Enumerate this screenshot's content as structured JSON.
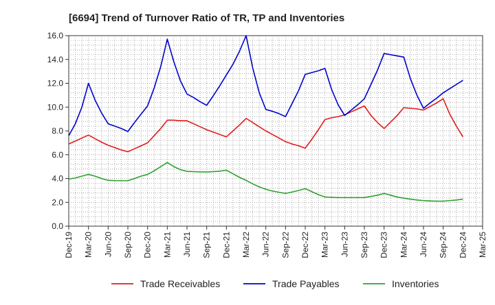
{
  "chart_data": {
    "type": "line",
    "title": "[6694]  Trend of Turnover Ratio of TR, TP and Inventories",
    "xlabel": "",
    "ylabel": "",
    "ylim": [
      0,
      16
    ],
    "yticks": [
      "0.0",
      "2.0",
      "4.0",
      "6.0",
      "8.0",
      "10.0",
      "12.0",
      "14.0",
      "16.0"
    ],
    "xtick_labels": [
      "Dec-19",
      "Mar-20",
      "Jun-20",
      "Sep-20",
      "Dec-20",
      "Mar-21",
      "Jun-21",
      "Sep-21",
      "Dec-21",
      "Mar-22",
      "Jun-22",
      "Sep-22",
      "Dec-22",
      "Mar-23",
      "Jun-23",
      "Sep-23",
      "Dec-23",
      "Mar-24",
      "Jun-24",
      "Sep-24",
      "Dec-24",
      "Mar-25"
    ],
    "grid": true,
    "legend_position": "bottom",
    "x": [
      "Dec-19",
      "Jan-20",
      "Feb-20",
      "Mar-20",
      "Apr-20",
      "May-20",
      "Jun-20",
      "Jul-20",
      "Aug-20",
      "Sep-20",
      "Oct-20",
      "Nov-20",
      "Dec-20",
      "Jan-21",
      "Feb-21",
      "Mar-21",
      "Apr-21",
      "May-21",
      "Jun-21",
      "Jul-21",
      "Aug-21",
      "Sep-21",
      "Oct-21",
      "Nov-21",
      "Dec-21",
      "Jan-22",
      "Feb-22",
      "Mar-22",
      "Apr-22",
      "May-22",
      "Jun-22",
      "Jul-22",
      "Aug-22",
      "Sep-22",
      "Oct-22",
      "Nov-22",
      "Dec-22",
      "Jan-23",
      "Feb-23",
      "Mar-23",
      "Apr-23",
      "May-23",
      "Jun-23",
      "Jul-23",
      "Aug-23",
      "Sep-23",
      "Oct-23",
      "Nov-23",
      "Dec-23",
      "Jan-24",
      "Feb-24",
      "Mar-24",
      "Apr-24",
      "May-24",
      "Jun-24",
      "Jul-24",
      "Aug-24",
      "Sep-24",
      "Oct-24",
      "Nov-24",
      "Dec-24"
    ],
    "series": [
      {
        "name": "Trade Receivables",
        "color": "#e31a1c",
        "values": [
          6.9,
          7.15,
          7.4,
          7.65,
          7.35,
          7.05,
          6.8,
          6.6,
          6.4,
          6.25,
          6.5,
          6.75,
          7.0,
          7.6,
          8.2,
          8.9,
          8.9,
          8.85,
          8.85,
          8.6,
          8.35,
          8.1,
          7.9,
          7.7,
          7.5,
          8.0,
          8.5,
          9.05,
          8.7,
          8.35,
          8.0,
          7.7,
          7.4,
          7.1,
          6.9,
          6.75,
          6.55,
          7.3,
          8.1,
          8.95,
          9.1,
          9.2,
          9.35,
          9.6,
          9.85,
          10.1,
          9.3,
          8.7,
          8.2,
          8.75,
          9.3,
          9.95,
          9.9,
          9.85,
          9.75,
          10.05,
          10.35,
          10.7,
          9.4,
          8.4,
          7.5
        ]
      },
      {
        "name": "Trade Payables",
        "color": "#0000cc",
        "values": [
          7.6,
          8.6,
          10.0,
          12.0,
          10.6,
          9.5,
          8.6,
          8.4,
          8.2,
          7.95,
          8.7,
          9.4,
          10.1,
          11.6,
          13.4,
          15.7,
          13.8,
          12.2,
          11.1,
          10.8,
          10.45,
          10.15,
          10.95,
          11.8,
          12.7,
          13.6,
          14.7,
          16.0,
          13.3,
          11.2,
          9.8,
          9.65,
          9.45,
          9.2,
          10.3,
          11.4,
          12.75,
          12.9,
          13.05,
          13.25,
          11.5,
          10.2,
          9.3,
          9.75,
          10.2,
          10.7,
          11.9,
          13.1,
          14.5,
          14.4,
          14.3,
          14.2,
          12.4,
          11.0,
          9.9,
          10.35,
          10.75,
          11.2,
          11.55,
          11.9,
          12.25
        ]
      },
      {
        "name": "Inventories",
        "color": "#2ca02c",
        "values": [
          3.95,
          4.05,
          4.2,
          4.35,
          4.2,
          4.0,
          3.85,
          3.82,
          3.82,
          3.82,
          4.0,
          4.2,
          4.35,
          4.65,
          5.0,
          5.35,
          5.0,
          4.75,
          4.6,
          4.58,
          4.56,
          4.55,
          4.58,
          4.62,
          4.7,
          4.4,
          4.1,
          3.85,
          3.55,
          3.3,
          3.1,
          2.95,
          2.85,
          2.75,
          2.87,
          3.0,
          3.15,
          2.9,
          2.65,
          2.45,
          2.42,
          2.4,
          2.4,
          2.4,
          2.4,
          2.4,
          2.5,
          2.6,
          2.75,
          2.6,
          2.45,
          2.35,
          2.27,
          2.2,
          2.15,
          2.12,
          2.1,
          2.1,
          2.15,
          2.2,
          2.27
        ]
      }
    ]
  }
}
